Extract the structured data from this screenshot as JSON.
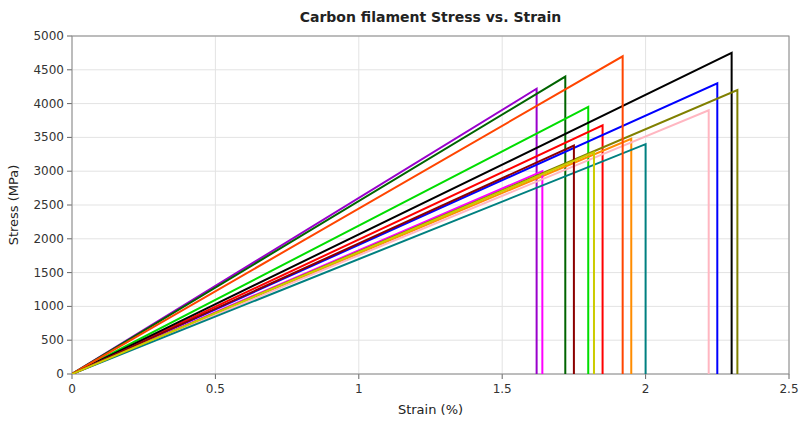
{
  "chart_data": {
    "type": "line",
    "title": "Carbon filament Stress vs. Strain",
    "xlabel": "Strain (%)",
    "ylabel": "Stress (MPa)",
    "xlim": [
      0,
      2.5
    ],
    "ylim": [
      0,
      5000
    ],
    "xticks": [
      0,
      0.5,
      1,
      1.5,
      2,
      2.5
    ],
    "yticks": [
      0,
      500,
      1000,
      1500,
      2000,
      2500,
      3000,
      3500,
      4000,
      4500,
      5000
    ],
    "grid": true,
    "series": [
      {
        "color": "#9900cc",
        "x": [
          0.0,
          1.62,
          1.62
        ],
        "values": [
          0.0,
          4220,
          0
        ]
      },
      {
        "color": "#006400",
        "x": [
          0.0,
          1.72,
          1.72
        ],
        "values": [
          0.0,
          4400,
          0
        ]
      },
      {
        "color": "#00dd00",
        "x": [
          0.0,
          1.8,
          1.8
        ],
        "values": [
          0.0,
          3950,
          0
        ]
      },
      {
        "color": "#ff0000",
        "x": [
          0.0,
          1.85,
          1.85
        ],
        "values": [
          0.0,
          3680,
          0
        ]
      },
      {
        "color": "#000000",
        "x": [
          0.0,
          2.3,
          2.3
        ],
        "values": [
          0.0,
          4750,
          0
        ]
      },
      {
        "color": "#0000ff",
        "x": [
          0.0,
          2.25,
          2.25
        ],
        "values": [
          0.0,
          4300,
          0
        ]
      },
      {
        "color": "#ff8c00",
        "x": [
          0.0,
          1.95,
          1.95
        ],
        "values": [
          0.0,
          3480,
          0
        ]
      },
      {
        "color": "#ff00ff",
        "x": [
          0.0,
          1.64,
          1.64
        ],
        "values": [
          0.0,
          3000,
          0
        ]
      },
      {
        "color": "#ffb6c1",
        "x": [
          0.0,
          2.22,
          2.22
        ],
        "values": [
          0.0,
          3900,
          0
        ]
      },
      {
        "color": "#008080",
        "x": [
          0.0,
          2.0,
          2.0
        ],
        "values": [
          0.0,
          3400,
          0
        ]
      },
      {
        "color": "#808000",
        "x": [
          0.0,
          2.32,
          2.32
        ],
        "values": [
          0.0,
          4200,
          0
        ]
      },
      {
        "color": "#ff4500",
        "x": [
          0.0,
          1.92,
          1.92
        ],
        "values": [
          0.0,
          4700,
          0
        ]
      },
      {
        "color": "#8b0000",
        "x": [
          0.0,
          1.75,
          1.75
        ],
        "values": [
          0.0,
          3380,
          0
        ]
      },
      {
        "color": "#cccc00",
        "x": [
          0.0,
          1.82,
          1.82
        ],
        "values": [
          0.0,
          3280,
          0
        ]
      }
    ]
  }
}
